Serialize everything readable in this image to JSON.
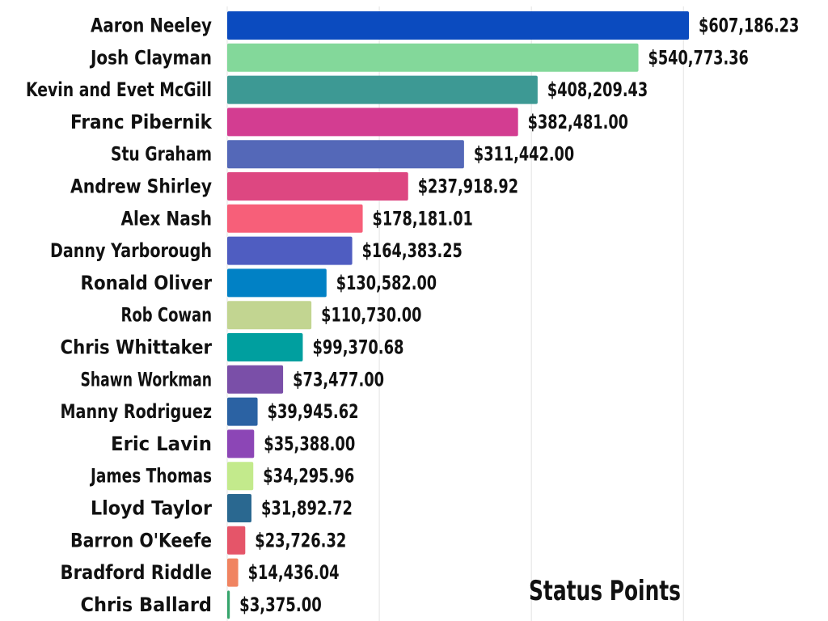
{
  "chart_data": {
    "type": "bar",
    "orientation": "horizontal",
    "title": "Status Points",
    "xlim": [
      0,
      640000
    ],
    "grid": true,
    "categories": [
      "Aaron Neeley",
      "Josh Clayman",
      "Kevin and Evet McGill",
      "Franc Pibernik",
      "Stu Graham",
      "Andrew Shirley",
      "Alex Nash",
      "Danny Yarborough",
      "Ronald Oliver",
      "Rob Cowan",
      "Chris Whittaker",
      "Shawn Workman",
      "Manny Rodriguez",
      "Eric Lavin",
      "James Thomas",
      "Lloyd Taylor",
      "Barron O'Keefe",
      "Bradford Riddle",
      "Chris Ballard"
    ],
    "values": [
      607186.23,
      540773.36,
      408209.43,
      382481.0,
      311442.0,
      237918.92,
      178181.01,
      164383.25,
      130582.0,
      110730.0,
      99370.68,
      73477.0,
      39945.62,
      35388.0,
      34295.96,
      31892.72,
      23726.32,
      14436.04,
      3375.0
    ],
    "value_labels": [
      "$607,186.23",
      "$540,773.36",
      "$408,209.43",
      "$382,481.00",
      "$311,442.00",
      "$237,918.92",
      "$178,181.01",
      "$164,383.25",
      "$130,582.00",
      "$110,730.00",
      "$99,370.68",
      "$73,477.00",
      "$39,945.62",
      "$35,388.00",
      "$34,295.96",
      "$31,892.72",
      "$23,726.32",
      "$14,436.04",
      "$3,375.00"
    ],
    "colors": [
      "#0b4bbf",
      "#83d89a",
      "#3d9994",
      "#d33d91",
      "#5468b8",
      "#dd4781",
      "#f75f79",
      "#4f5dc1",
      "#0181c5",
      "#c2d591",
      "#009f9f",
      "#7a4fa8",
      "#2b62a3",
      "#8c46b6",
      "#c3ea8c",
      "#2a6890",
      "#e55569",
      "#f08461",
      "#37a56c"
    ]
  }
}
